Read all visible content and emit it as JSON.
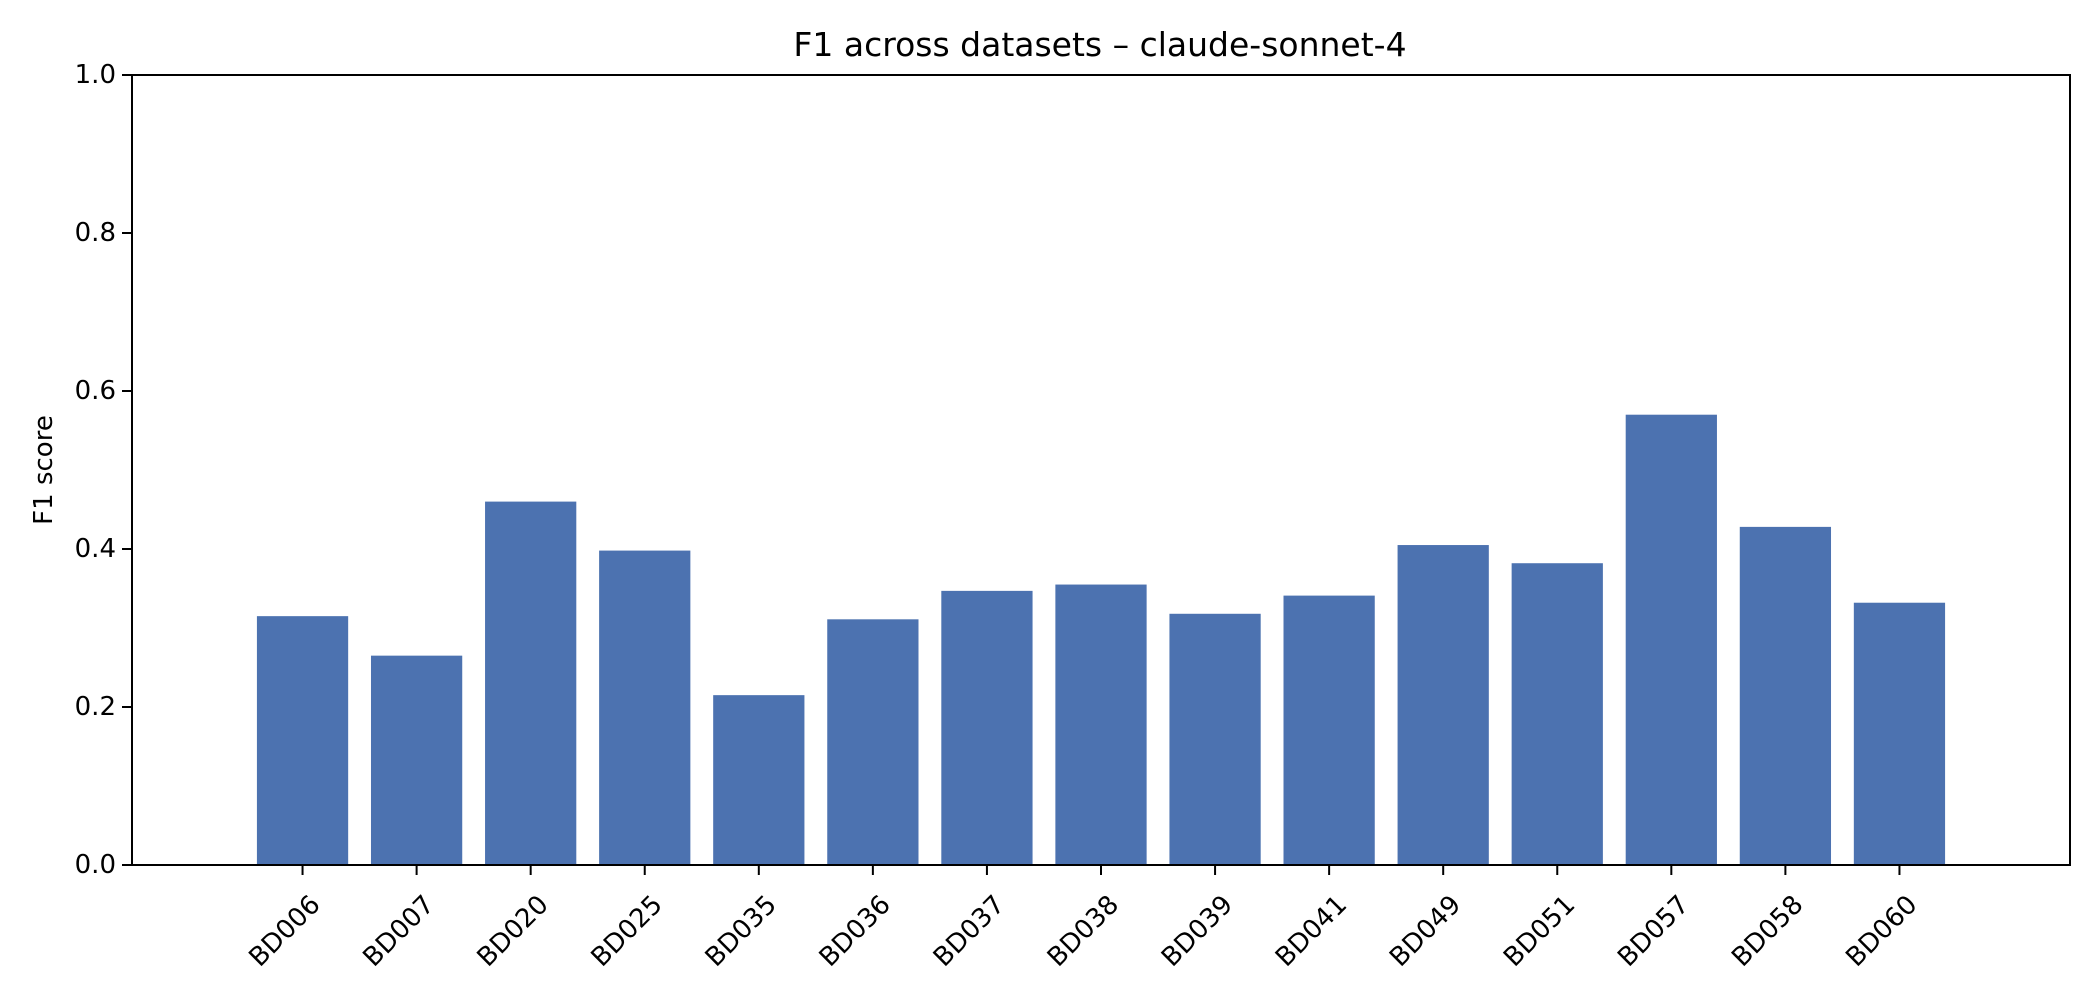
{
  "chart_data": {
    "type": "bar",
    "title": "F1 across datasets – claude-sonnet-4",
    "xlabel": "",
    "ylabel": "F1 score",
    "categories": [
      "BD006",
      "BD007",
      "BD020",
      "BD025",
      "BD035",
      "BD036",
      "BD037",
      "BD038",
      "BD039",
      "BD041",
      "BD049",
      "BD051",
      "BD057",
      "BD058",
      "BD060"
    ],
    "values": [
      0.315,
      0.265,
      0.46,
      0.398,
      0.215,
      0.311,
      0.347,
      0.355,
      0.318,
      0.341,
      0.405,
      0.382,
      0.57,
      0.428,
      0.332
    ],
    "ylim": [
      0,
      1.0
    ],
    "yticks": [
      "0.0",
      "0.2",
      "0.4",
      "0.6",
      "0.8",
      "1.0"
    ],
    "grid": false,
    "bar_color": "#4c72b0"
  }
}
